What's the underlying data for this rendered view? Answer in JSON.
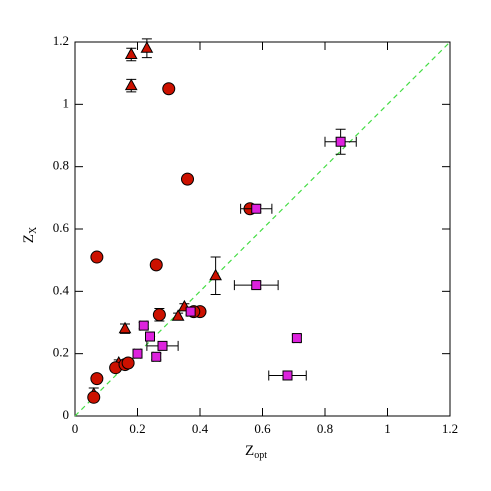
{
  "chart_data": {
    "type": "scatter",
    "xlabel": "Z",
    "xlabel_sub": "opt",
    "ylabel": "Z",
    "ylabel_sub": "X",
    "xlim": [
      0,
      1.2
    ],
    "ylim": [
      0,
      1.2
    ],
    "xticks": [
      0,
      0.2,
      0.4,
      0.6,
      0.8,
      1,
      1.2
    ],
    "yticks": [
      0,
      0.2,
      0.4,
      0.6,
      0.8,
      1,
      1.2
    ],
    "reference_line": {
      "color": "#44dd44"
    },
    "series": [
      {
        "marker": "triangle",
        "color": "#cc1100",
        "x": [
          0.18,
          0.23,
          0.18,
          0.45,
          0.16,
          0.35,
          0.33,
          0.06,
          0.14
        ],
        "y": [
          1.16,
          1.18,
          1.06,
          0.45,
          0.28,
          0.35,
          0.32,
          0.07,
          0.17
        ],
        "yerr": [
          0.02,
          0.03,
          0.02,
          0.06,
          0.015,
          0.01,
          0.01,
          0.02,
          0.01
        ],
        "xerr": [
          null,
          null,
          null,
          null,
          null,
          null,
          null,
          null,
          null
        ]
      },
      {
        "marker": "circle",
        "color": "#cc1100",
        "x": [
          0.3,
          0.36,
          0.07,
          0.26,
          0.56,
          0.27,
          0.4,
          0.38,
          0.07,
          0.13,
          0.16,
          0.17,
          0.06
        ],
        "y": [
          1.05,
          0.76,
          0.51,
          0.485,
          0.665,
          0.325,
          0.335,
          0.335,
          0.12,
          0.155,
          0.165,
          0.17,
          0.06
        ],
        "yerr": [
          0.01,
          0.01,
          0.01,
          0.01,
          0.01,
          0.02,
          0.01,
          0.01,
          0.01,
          0.01,
          0.01,
          0.01,
          0.01
        ],
        "xerr": [
          null,
          null,
          null,
          null,
          null,
          null,
          null,
          null,
          null,
          null,
          null,
          null,
          null
        ]
      },
      {
        "marker": "square",
        "color": "#dd22dd",
        "x": [
          0.85,
          0.58,
          0.58,
          0.71,
          0.68,
          0.22,
          0.24,
          0.2,
          0.26,
          0.28,
          0.37
        ],
        "y": [
          0.88,
          0.665,
          0.42,
          0.25,
          0.13,
          0.29,
          0.255,
          0.2,
          0.19,
          0.225,
          0.335
        ],
        "yerr": [
          0.04,
          0.01,
          0.01,
          0.01,
          0.01,
          0.01,
          0.01,
          0.01,
          0.01,
          0.01,
          0.01
        ],
        "xerr": [
          0.05,
          0.05,
          0.07,
          0.01,
          0.06,
          0.01,
          0.01,
          0.01,
          0.01,
          0.05,
          0.01
        ]
      }
    ]
  }
}
